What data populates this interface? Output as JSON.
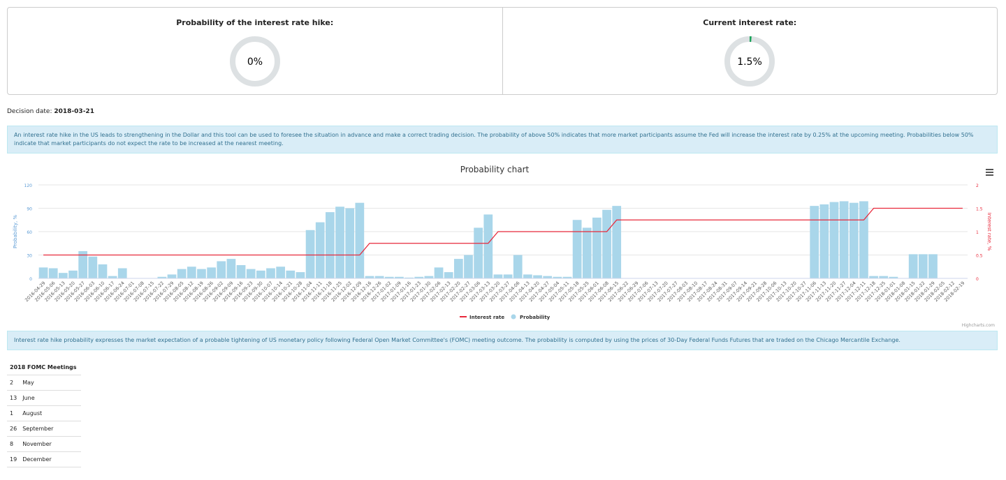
{
  "panels": [
    {
      "title": "Probability of the interest rate hike:",
      "value": "0%"
    },
    {
      "title": "Current interest rate:",
      "value": "1.5%"
    }
  ],
  "decision": {
    "label": "Decision date:",
    "date": "2018-03-21"
  },
  "info1": "An interest rate hike in the US leads to strengthening in the Dollar and this tool can be used to foresee the situation in advance and make a correct trading decision. The probability of above 50% indicates that more market participants assume the Fed will increase the interest rate by 0.25% at the upcoming meeting. Probabilities below 50% indicate that market participants do not expect the rate to be increased at the nearest meeting.",
  "chart_data": {
    "type": "bar-line",
    "title": "Probability chart",
    "y_label": "Probability, %",
    "y2_label": "Interest rate, %",
    "credits": "Highcharts.com",
    "categories": [
      "2016-04-29",
      "2016-05-06",
      "2016-05-13",
      "2016-05-20",
      "2016-05-27",
      "2016-06-03",
      "2016-06-10",
      "2016-06-17",
      "2016-06-24",
      "2016-07-01",
      "2016-07-08",
      "2016-07-15",
      "2016-07-22",
      "2016-07-29",
      "2016-08-05",
      "2016-08-12",
      "2016-08-19",
      "2016-08-26",
      "2016-09-02",
      "2016-09-09",
      "2016-09-16",
      "2016-09-23",
      "2016-09-30",
      "2016-10-07",
      "2016-10-14",
      "2016-10-21",
      "2016-10-28",
      "2016-11-04",
      "2016-11-11",
      "2016-11-18",
      "2016-11-25",
      "2016-12-02",
      "2016-12-09",
      "2016-12-16",
      "2016-12-26",
      "2017-01-02",
      "2017-01-09",
      "2017-01-16",
      "2017-01-23",
      "2017-01-30",
      "2017-02-06",
      "2017-02-13",
      "2017-02-20",
      "2017-02-27",
      "2017-03-06",
      "2017-03-13",
      "2017-03-20",
      "2017-03-27",
      "2017-04-06",
      "2017-04-13",
      "2017-04-20",
      "2017-04-27",
      "2017-05-04",
      "2017-05-11",
      "2017-05-18",
      "2017-05-25",
      "2017-06-01",
      "2017-06-08",
      "2017-06-15",
      "2017-06-22",
      "2017-06-29",
      "2017-07-06",
      "2017-07-13",
      "2017-07-20",
      "2017-07-27",
      "2017-08-03",
      "2017-08-10",
      "2017-08-17",
      "2017-08-24",
      "2017-08-31",
      "2017-09-07",
      "2017-09-14",
      "2017-09-21",
      "2017-09-28",
      "2017-10-06",
      "2017-10-13",
      "2017-10-20",
      "2017-10-27",
      "2017-11-06",
      "2017-11-13",
      "2017-11-20",
      "2017-11-27",
      "2017-12-04",
      "2017-12-11",
      "2017-12-18",
      "2017-12-25",
      "2018-01-01",
      "2018-01-08",
      "2018-01-15",
      "2018-01-22",
      "2018-01-29",
      "2018-02-05",
      "2018-02-12",
      "2018-02-19"
    ],
    "series": [
      {
        "name": "Interest rate",
        "color": "#e8293b",
        "axis": "y2",
        "values": [
          0.5,
          0.5,
          0.5,
          0.5,
          0.5,
          0.5,
          0.5,
          0.5,
          0.5,
          0.5,
          0.5,
          0.5,
          0.5,
          0.5,
          0.5,
          0.5,
          0.5,
          0.5,
          0.5,
          0.5,
          0.5,
          0.5,
          0.5,
          0.5,
          0.5,
          0.5,
          0.5,
          0.5,
          0.5,
          0.5,
          0.5,
          0.5,
          0.5,
          0.75,
          0.75,
          0.75,
          0.75,
          0.75,
          0.75,
          0.75,
          0.75,
          0.75,
          0.75,
          0.75,
          0.75,
          0.75,
          1,
          1,
          1,
          1,
          1,
          1,
          1,
          1,
          1,
          1,
          1,
          1,
          1.25,
          1.25,
          1.25,
          1.25,
          1.25,
          1.25,
          1.25,
          1.25,
          1.25,
          1.25,
          1.25,
          1.25,
          1.25,
          1.25,
          1.25,
          1.25,
          1.25,
          1.25,
          1.25,
          1.25,
          1.25,
          1.25,
          1.25,
          1.25,
          1.25,
          1.25,
          1.5,
          1.5,
          1.5,
          1.5,
          1.5,
          1.5,
          1.5,
          1.5,
          1.5,
          1.5
        ]
      },
      {
        "name": "Probability",
        "color": "#a9d6ea",
        "values": [
          14,
          13,
          7,
          10,
          35,
          28,
          18,
          3,
          13,
          0,
          0,
          0,
          2,
          5,
          12,
          15,
          12,
          14,
          22,
          25,
          17,
          12,
          10,
          13,
          15,
          10,
          8,
          62,
          72,
          85,
          92,
          90,
          97,
          3,
          3,
          2,
          2,
          1,
          2,
          3,
          14,
          8,
          25,
          30,
          65,
          82,
          5,
          5,
          30,
          5,
          4,
          3,
          2,
          2,
          75,
          65,
          78,
          88,
          93,
          0,
          0,
          0,
          0,
          0,
          0,
          0,
          0,
          0,
          0,
          0,
          0,
          0,
          0,
          0,
          0,
          0,
          0,
          0,
          93,
          95,
          98,
          99,
          97,
          99,
          3,
          3,
          2,
          0,
          31,
          31,
          31,
          0,
          0,
          0
        ]
      }
    ],
    "ylim": [
      0,
      120
    ],
    "yticks": [
      0,
      30,
      60,
      90,
      120
    ],
    "y2lim": [
      0,
      2
    ],
    "y2ticks": [
      0,
      0.5,
      1,
      1.5,
      2
    ]
  },
  "info2": "Interest rate hike probability expresses the market expectation of a probable tightening of US monetary policy following Federal Open Market Committee's (FOMC) meeting outcome. The probability is computed by using the prices of 30-Day Federal Funds Futures that are traded on the Chicago Mercantile Exchange.",
  "table": {
    "title": "2018 FOMC Meetings",
    "rows": [
      [
        2,
        "May"
      ],
      [
        13,
        "June"
      ],
      [
        1,
        "August"
      ],
      [
        26,
        "September"
      ],
      [
        8,
        "November"
      ],
      [
        19,
        "December"
      ]
    ]
  }
}
